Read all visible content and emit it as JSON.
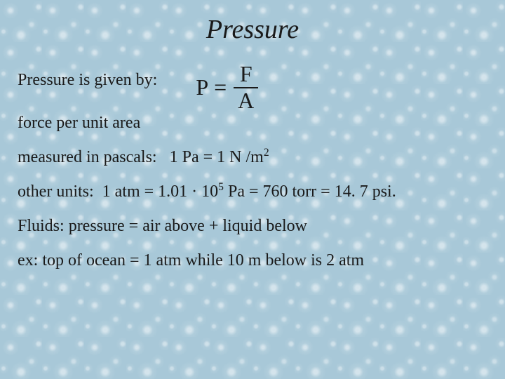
{
  "title": "Pressure",
  "intro": "Pressure is given by:",
  "formula": {
    "lhs": "P",
    "eq": "=",
    "numerator": "F",
    "denominator": "A"
  },
  "force_line": "force per unit area",
  "pascals": {
    "prefix": "measured in pascals:",
    "rel": "1 Pa = 1 N /m",
    "exp": "2"
  },
  "other_units": {
    "prefix": "other units:",
    "a": "1 atm  =  1.01 · 10",
    "exp": "5",
    "b": " Pa  =  760 torr = 14. 7 psi."
  },
  "fluids": "Fluids:  pressure = air above + liquid below",
  "example": "ex:  top of ocean = 1 atm  while 10 m below is 2 atm",
  "style": {
    "bg_color": "#a8c8d8",
    "text_color": "#1a1a1a",
    "title_fontsize": 38,
    "body_fontsize": 24,
    "formula_fontsize": 32
  }
}
